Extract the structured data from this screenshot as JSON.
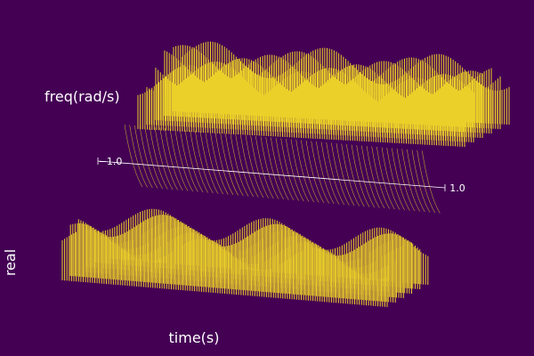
{
  "chart_data": {
    "type": "surface3d",
    "axis_labels": {
      "x": "time(s)",
      "y": "freq(rad/s)",
      "z": "real"
    },
    "yticks": [
      {
        "value": -1,
        "label": "−1.0"
      },
      {
        "value": 1,
        "label": "1.0"
      }
    ],
    "ylim": [
      -1,
      1
    ],
    "color": "#fde725",
    "background": "#440154"
  }
}
